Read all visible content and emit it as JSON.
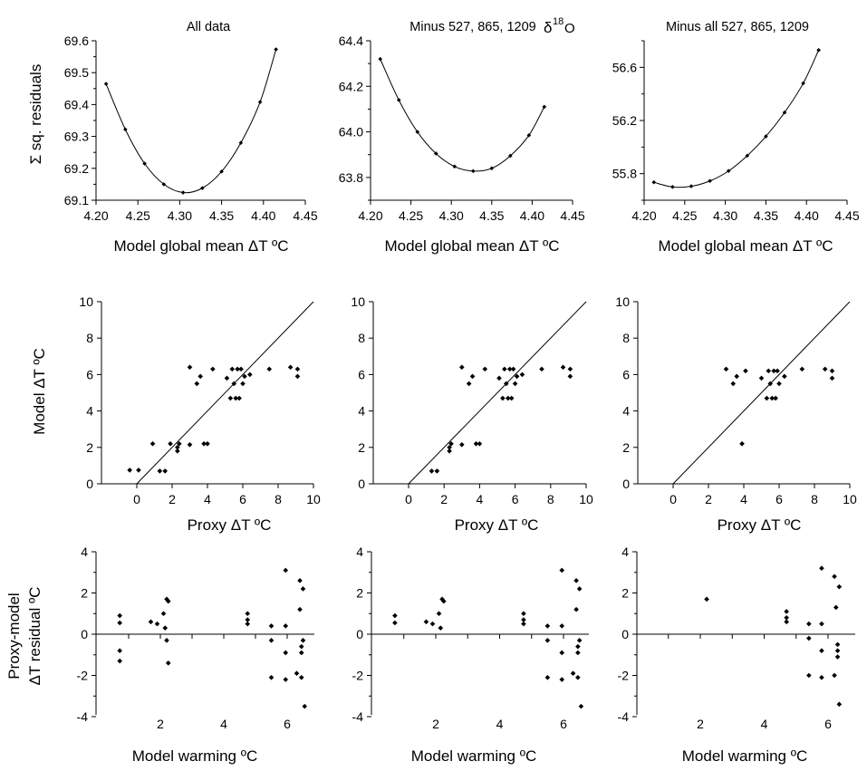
{
  "chart_data": [
    {
      "type": "line",
      "panel": "r1c1",
      "title": "All data",
      "xlabel": "Model global mean  ΔT ºC",
      "ylabel": "Σ sq. residuals",
      "xlim": [
        4.2,
        4.45
      ],
      "ylim": [
        69.1,
        69.6
      ],
      "x_ticks": [
        "4.20",
        "4.25",
        "4.30",
        "4.35",
        "4.40",
        "4.45"
      ],
      "y_ticks": [
        "69.1",
        "69.2",
        "69.3",
        "69.4",
        "69.5",
        "69.6"
      ],
      "x": [
        4.212,
        4.235,
        4.258,
        4.281,
        4.304,
        4.327,
        4.35,
        4.373,
        4.396,
        4.415
      ],
      "y": [
        69.465,
        69.322,
        69.215,
        69.15,
        69.124,
        69.138,
        69.19,
        69.28,
        69.408,
        69.573
      ]
    },
    {
      "type": "line",
      "panel": "r1c2",
      "title": "Minus 527, 865, 1209",
      "xlabel": "Model global mean  ΔT ºC",
      "ylabel": "",
      "xlim": [
        4.2,
        4.45
      ],
      "ylim": [
        63.7,
        64.4
      ],
      "x_ticks": [
        "4.20",
        "4.25",
        "4.30",
        "4.35",
        "4.40",
        "4.45"
      ],
      "y_ticks": [
        "63.8",
        "64.0",
        "64.2",
        "64.4"
      ],
      "x": [
        4.212,
        4.235,
        4.258,
        4.281,
        4.304,
        4.327,
        4.35,
        4.373,
        4.396,
        4.415
      ],
      "y": [
        64.32,
        64.14,
        64.0,
        63.905,
        63.848,
        63.828,
        63.84,
        63.895,
        63.985,
        64.11
      ]
    },
    {
      "type": "line",
      "panel": "r1c3",
      "title": "Minus all 527, 865, 1209",
      "xlabel": "Model global mean  ΔT ºC",
      "ylabel": "",
      "xlim": [
        4.2,
        4.45
      ],
      "ylim": [
        55.6,
        56.8
      ],
      "x_ticks": [
        "4.20",
        "4.25",
        "4.30",
        "4.35",
        "4.40",
        "4.45"
      ],
      "y_ticks": [
        "55.8",
        "56.2",
        "56.6"
      ],
      "x": [
        4.212,
        4.235,
        4.258,
        4.281,
        4.304,
        4.327,
        4.35,
        4.373,
        4.396,
        4.415
      ],
      "y": [
        55.735,
        55.7,
        55.705,
        55.745,
        55.82,
        55.935,
        56.08,
        56.26,
        56.48,
        56.73
      ]
    },
    {
      "type": "scatter",
      "panel": "r2c1",
      "xlabel": "Proxy  ΔT ºC",
      "ylabel": "Model  ΔT ºC",
      "xlim": [
        -2,
        10
      ],
      "ylim": [
        0,
        10
      ],
      "x_ticks": [
        "0",
        "2",
        "4",
        "6",
        "8",
        "10"
      ],
      "y_ticks": [
        "0",
        "2",
        "4",
        "6",
        "8",
        "10"
      ],
      "reference_line": "1:1",
      "points": [
        [
          -0.4,
          0.75
        ],
        [
          0.1,
          0.75
        ],
        [
          0.9,
          2.2
        ],
        [
          1.3,
          0.7
        ],
        [
          1.6,
          0.7
        ],
        [
          1.9,
          2.2
        ],
        [
          2.3,
          1.8
        ],
        [
          2.3,
          2.0
        ],
        [
          2.4,
          2.2
        ],
        [
          3.0,
          6.4
        ],
        [
          3.0,
          2.15
        ],
        [
          3.4,
          5.5
        ],
        [
          3.6,
          5.9
        ],
        [
          3.8,
          2.2
        ],
        [
          4.0,
          2.2
        ],
        [
          4.3,
          6.3
        ],
        [
          5.1,
          5.8
        ],
        [
          5.3,
          4.7
        ],
        [
          5.4,
          6.3
        ],
        [
          5.5,
          5.5
        ],
        [
          5.6,
          4.7
        ],
        [
          5.7,
          6.3
        ],
        [
          5.8,
          4.7
        ],
        [
          5.9,
          6.3
        ],
        [
          6.0,
          5.5
        ],
        [
          6.1,
          5.9
        ],
        [
          6.4,
          6.0
        ],
        [
          7.5,
          6.3
        ],
        [
          8.7,
          6.4
        ],
        [
          9.1,
          6.3
        ],
        [
          9.1,
          5.9
        ]
      ]
    },
    {
      "type": "scatter",
      "panel": "r2c2",
      "xlabel": "Proxy  ΔT ºC",
      "ylabel": "",
      "xlim": [
        -2,
        10
      ],
      "ylim": [
        0,
        10
      ],
      "x_ticks": [
        "0",
        "2",
        "4",
        "6",
        "8",
        "10"
      ],
      "y_ticks": [
        "0",
        "2",
        "4",
        "6",
        "8",
        "10"
      ],
      "reference_line": "1:1",
      "points": [
        [
          1.3,
          0.7
        ],
        [
          1.6,
          0.7
        ],
        [
          2.3,
          1.8
        ],
        [
          2.3,
          2.0
        ],
        [
          2.4,
          2.2
        ],
        [
          3.0,
          6.4
        ],
        [
          3.0,
          2.15
        ],
        [
          3.4,
          5.5
        ],
        [
          3.6,
          5.9
        ],
        [
          3.8,
          2.2
        ],
        [
          4.0,
          2.2
        ],
        [
          4.3,
          6.3
        ],
        [
          5.1,
          5.8
        ],
        [
          5.3,
          4.7
        ],
        [
          5.4,
          6.3
        ],
        [
          5.5,
          5.5
        ],
        [
          5.6,
          4.7
        ],
        [
          5.7,
          6.3
        ],
        [
          5.8,
          4.7
        ],
        [
          5.9,
          6.3
        ],
        [
          6.0,
          5.5
        ],
        [
          6.1,
          5.9
        ],
        [
          6.4,
          6.0
        ],
        [
          7.5,
          6.3
        ],
        [
          8.7,
          6.4
        ],
        [
          9.1,
          6.3
        ],
        [
          9.1,
          5.9
        ]
      ]
    },
    {
      "type": "scatter",
      "panel": "r2c3",
      "xlabel": "Proxy  ΔT ºC",
      "ylabel": "",
      "xlim": [
        -2,
        10
      ],
      "ylim": [
        0,
        10
      ],
      "x_ticks": [
        "0",
        "2",
        "4",
        "6",
        "8",
        "10"
      ],
      "y_ticks": [
        "0",
        "2",
        "4",
        "6",
        "8",
        "10"
      ],
      "reference_line": "1:1",
      "points": [
        [
          3.0,
          6.3
        ],
        [
          3.4,
          5.5
        ],
        [
          3.6,
          5.9
        ],
        [
          3.9,
          2.2
        ],
        [
          4.1,
          6.2
        ],
        [
          5.0,
          5.8
        ],
        [
          5.3,
          4.7
        ],
        [
          5.4,
          6.2
        ],
        [
          5.5,
          5.5
        ],
        [
          5.6,
          4.7
        ],
        [
          5.7,
          6.2
        ],
        [
          5.8,
          4.7
        ],
        [
          5.9,
          6.2
        ],
        [
          6.0,
          5.5
        ],
        [
          6.3,
          5.9
        ],
        [
          7.3,
          6.3
        ],
        [
          8.6,
          6.3
        ],
        [
          9.0,
          6.2
        ],
        [
          9.0,
          5.8
        ]
      ]
    },
    {
      "type": "scatter",
      "panel": "r3c1",
      "xlabel": "Model warming ºC",
      "ylabel": "Proxy-model\nΔT residual ºC",
      "xlim": [
        0,
        7
      ],
      "ylim": [
        -4,
        4
      ],
      "x_ticks": [
        "2",
        "4",
        "6"
      ],
      "y_ticks": [
        "4",
        "2",
        "0",
        "-2",
        "-4"
      ],
      "zero_line": true,
      "points": [
        [
          0.72,
          0.9
        ],
        [
          0.72,
          0.55
        ],
        [
          0.72,
          -0.8
        ],
        [
          0.72,
          -1.3
        ],
        [
          1.7,
          0.6
        ],
        [
          1.9,
          0.5
        ],
        [
          2.1,
          1.0
        ],
        [
          2.15,
          0.3
        ],
        [
          2.2,
          1.7
        ],
        [
          2.25,
          1.6
        ],
        [
          2.2,
          -0.3
        ],
        [
          2.25,
          -1.4
        ],
        [
          4.75,
          1.0
        ],
        [
          4.75,
          0.7
        ],
        [
          4.75,
          0.5
        ],
        [
          5.5,
          0.4
        ],
        [
          5.5,
          -0.3
        ],
        [
          5.5,
          -2.1
        ],
        [
          5.95,
          3.1
        ],
        [
          5.95,
          0.4
        ],
        [
          5.95,
          -0.9
        ],
        [
          5.95,
          -2.2
        ],
        [
          6.3,
          -1.9
        ],
        [
          6.4,
          2.6
        ],
        [
          6.4,
          1.2
        ],
        [
          6.45,
          -0.6
        ],
        [
          6.45,
          -0.9
        ],
        [
          6.45,
          -2.1
        ],
        [
          6.5,
          2.2
        ],
        [
          6.5,
          -0.3
        ],
        [
          6.55,
          -3.5
        ]
      ]
    },
    {
      "type": "scatter",
      "panel": "r3c2",
      "xlabel": "Model warming ºC",
      "ylabel": "",
      "xlim": [
        0,
        7
      ],
      "ylim": [
        -4,
        4
      ],
      "x_ticks": [
        "2",
        "4",
        "6"
      ],
      "y_ticks": [
        "4",
        "2",
        "0",
        "-2",
        "-4"
      ],
      "zero_line": true,
      "points": [
        [
          0.72,
          0.9
        ],
        [
          0.72,
          0.55
        ],
        [
          1.7,
          0.6
        ],
        [
          1.9,
          0.5
        ],
        [
          2.1,
          1.0
        ],
        [
          2.15,
          0.3
        ],
        [
          2.2,
          1.7
        ],
        [
          2.25,
          1.6
        ],
        [
          4.75,
          1.0
        ],
        [
          4.75,
          0.7
        ],
        [
          4.75,
          0.5
        ],
        [
          5.5,
          0.4
        ],
        [
          5.5,
          -0.3
        ],
        [
          5.5,
          -2.1
        ],
        [
          5.95,
          3.1
        ],
        [
          5.95,
          0.4
        ],
        [
          5.95,
          -0.9
        ],
        [
          5.95,
          -2.2
        ],
        [
          6.3,
          -1.9
        ],
        [
          6.4,
          2.6
        ],
        [
          6.4,
          1.2
        ],
        [
          6.45,
          -0.6
        ],
        [
          6.45,
          -0.9
        ],
        [
          6.45,
          -2.1
        ],
        [
          6.5,
          2.2
        ],
        [
          6.5,
          -0.3
        ],
        [
          6.55,
          -3.5
        ]
      ]
    },
    {
      "type": "scatter",
      "panel": "r3c3",
      "xlabel": "Model warming ºC",
      "ylabel": "",
      "xlim": [
        0,
        7
      ],
      "ylim": [
        -4,
        4
      ],
      "x_ticks": [
        "2",
        "4",
        "6"
      ],
      "y_ticks": [
        "4",
        "2",
        "0",
        "-2",
        "-4"
      ],
      "zero_line": true,
      "points": [
        [
          2.2,
          1.7
        ],
        [
          4.7,
          1.1
        ],
        [
          4.7,
          0.8
        ],
        [
          4.7,
          0.6
        ],
        [
          5.4,
          0.5
        ],
        [
          5.4,
          -0.2
        ],
        [
          5.4,
          -2.0
        ],
        [
          5.8,
          3.2
        ],
        [
          5.8,
          0.5
        ],
        [
          5.8,
          -0.8
        ],
        [
          5.8,
          -2.1
        ],
        [
          6.2,
          2.8
        ],
        [
          6.2,
          -2.0
        ],
        [
          6.25,
          1.3
        ],
        [
          6.3,
          -0.5
        ],
        [
          6.3,
          -0.8
        ],
        [
          6.3,
          -1.1
        ],
        [
          6.35,
          2.3
        ],
        [
          6.35,
          -3.4
        ]
      ]
    }
  ],
  "delta18_symbol": "δ",
  "delta18_sup": "18",
  "delta18_element": "O"
}
